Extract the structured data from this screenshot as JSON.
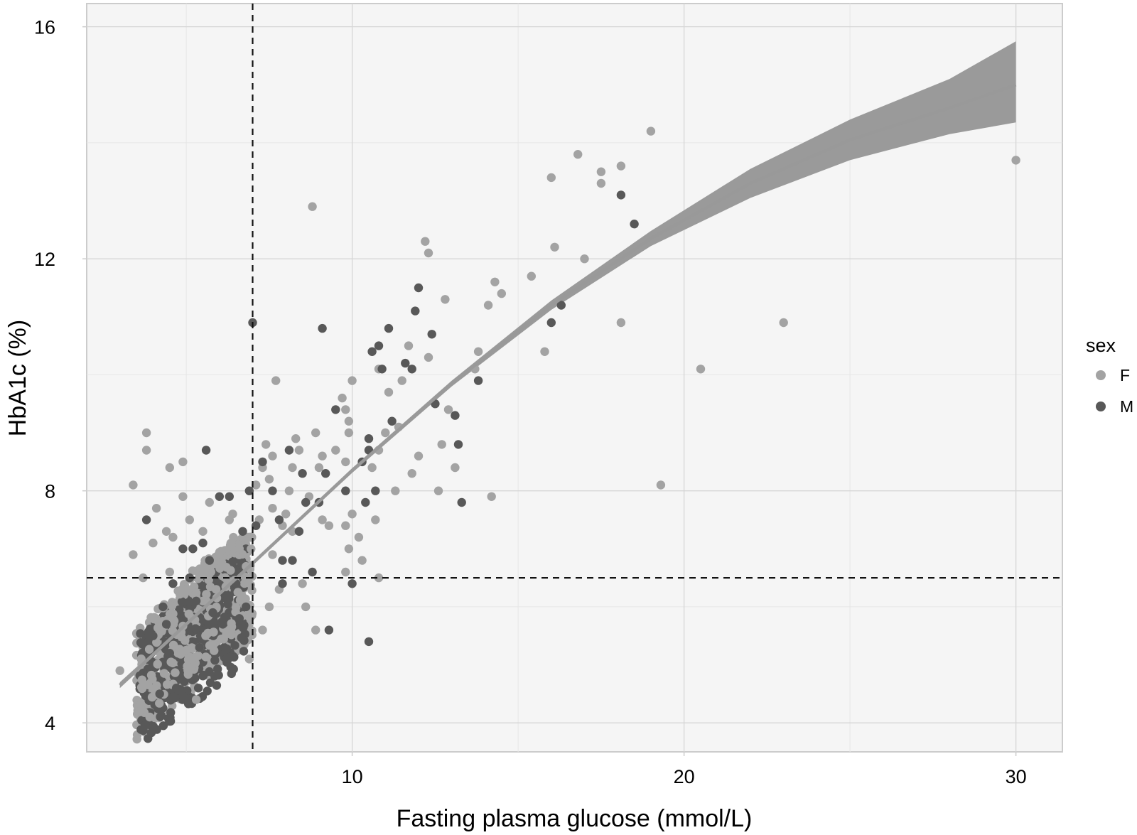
{
  "chart_data": {
    "type": "scatter",
    "title": "",
    "xlabel": "Fasting plasma glucose (mmol/L)",
    "ylabel": "HbA1c (%)",
    "xlim": [
      2.0,
      31.4
    ],
    "ylim": [
      3.5,
      16.4
    ],
    "x_ticks": [
      10,
      20,
      30
    ],
    "x_tick_labels": [
      "10",
      "20",
      "30"
    ],
    "y_ticks": [
      4,
      8,
      12,
      16
    ],
    "y_tick_labels": [
      "4",
      "8",
      "12",
      "16"
    ],
    "grid": true,
    "background": "#f5f5f5",
    "reference_lines": [
      {
        "orientation": "vertical",
        "x": 7.0,
        "style": "dashed"
      },
      {
        "orientation": "horizontal",
        "y": 6.5,
        "style": "dashed"
      }
    ],
    "legend": {
      "title": "sex",
      "placement": "right",
      "entries": [
        {
          "label": "F",
          "color": "#a3a3a3"
        },
        {
          "label": "M",
          "color": "#585858"
        }
      ]
    },
    "series": [
      {
        "name": "F",
        "color": "#a3a3a3",
        "points": [
          [
            3.0,
            4.9
          ],
          [
            3.4,
            6.9
          ],
          [
            3.4,
            8.1
          ],
          [
            3.6,
            4.2
          ],
          [
            3.7,
            6.5
          ],
          [
            3.9,
            4.1
          ],
          [
            3.8,
            8.7
          ],
          [
            3.8,
            9.0
          ],
          [
            4.1,
            7.7
          ],
          [
            4.0,
            7.1
          ],
          [
            4.5,
            8.4
          ],
          [
            4.5,
            6.6
          ],
          [
            4.4,
            7.3
          ],
          [
            4.3,
            6.0
          ],
          [
            4.6,
            7.2
          ],
          [
            4.9,
            7.9
          ],
          [
            4.9,
            8.5
          ],
          [
            5.1,
            7.5
          ],
          [
            5.3,
            4.4
          ],
          [
            5.5,
            7.3
          ],
          [
            5.7,
            7.8
          ],
          [
            5.5,
            6.1
          ],
          [
            5.9,
            6.3
          ],
          [
            6.3,
            7.5
          ],
          [
            6.6,
            7.0
          ],
          [
            6.4,
            7.6
          ],
          [
            6.9,
            7.2
          ],
          [
            6.9,
            6.5
          ],
          [
            6.9,
            5.1
          ],
          [
            7.1,
            8.1
          ],
          [
            7.2,
            7.5
          ],
          [
            7.3,
            8.4
          ],
          [
            7.4,
            8.8
          ],
          [
            7.6,
            8.6
          ],
          [
            7.7,
            9.9
          ],
          [
            7.5,
            8.2
          ],
          [
            7.6,
            7.7
          ],
          [
            7.9,
            7.4
          ],
          [
            7.8,
            6.3
          ],
          [
            7.6,
            6.9
          ],
          [
            7.3,
            5.6
          ],
          [
            7.5,
            6.0
          ],
          [
            8.0,
            7.6
          ],
          [
            8.1,
            8.0
          ],
          [
            8.2,
            7.3
          ],
          [
            8.2,
            8.4
          ],
          [
            8.3,
            8.9
          ],
          [
            8.4,
            8.7
          ],
          [
            8.5,
            6.4
          ],
          [
            8.6,
            6.0
          ],
          [
            8.7,
            7.9
          ],
          [
            8.9,
            5.6
          ],
          [
            8.9,
            9.0
          ],
          [
            9.0,
            8.4
          ],
          [
            9.1,
            7.5
          ],
          [
            9.3,
            7.4
          ],
          [
            9.1,
            8.6
          ],
          [
            9.5,
            8.7
          ],
          [
            9.7,
            9.6
          ],
          [
            9.8,
            8.5
          ],
          [
            9.8,
            9.4
          ],
          [
            9.9,
            9.2
          ],
          [
            9.9,
            9.0
          ],
          [
            10.0,
            9.9
          ],
          [
            9.8,
            7.4
          ],
          [
            9.8,
            6.6
          ],
          [
            9.9,
            7.0
          ],
          [
            10.3,
            6.8
          ],
          [
            10.2,
            7.2
          ],
          [
            10.0,
            7.6
          ],
          [
            10.6,
            8.4
          ],
          [
            10.8,
            8.7
          ],
          [
            11.0,
            9.0
          ],
          [
            11.1,
            9.7
          ],
          [
            11.3,
            8.0
          ],
          [
            11.4,
            9.1
          ],
          [
            11.5,
            9.9
          ],
          [
            11.7,
            10.5
          ],
          [
            11.8,
            8.3
          ],
          [
            12.0,
            8.6
          ],
          [
            12.3,
            10.3
          ],
          [
            12.2,
            12.3
          ],
          [
            12.3,
            12.1
          ],
          [
            12.7,
            8.8
          ],
          [
            12.8,
            11.3
          ],
          [
            12.9,
            9.4
          ],
          [
            12.6,
            8.0
          ],
          [
            13.1,
            8.4
          ],
          [
            13.7,
            10.1
          ],
          [
            13.8,
            10.4
          ],
          [
            14.1,
            11.2
          ],
          [
            14.3,
            11.6
          ],
          [
            14.5,
            11.4
          ],
          [
            14.2,
            7.9
          ],
          [
            15.4,
            11.7
          ],
          [
            15.8,
            10.4
          ],
          [
            16.0,
            13.4
          ],
          [
            16.1,
            12.2
          ],
          [
            16.8,
            13.8
          ],
          [
            17.0,
            12.0
          ],
          [
            17.5,
            13.3
          ],
          [
            17.5,
            13.5
          ],
          [
            18.1,
            13.6
          ],
          [
            18.1,
            10.9
          ],
          [
            19.0,
            14.2
          ],
          [
            19.3,
            8.1
          ],
          [
            20.5,
            10.1
          ],
          [
            23.0,
            10.9
          ],
          [
            30.0,
            13.7
          ],
          [
            8.8,
            12.9
          ],
          [
            10.8,
            10.1
          ],
          [
            10.7,
            7.5
          ],
          [
            10.8,
            6.5
          ]
        ]
      },
      {
        "name": "M",
        "color": "#585858",
        "points": [
          [
            3.8,
            7.5
          ],
          [
            4.0,
            5.5
          ],
          [
            4.2,
            4.5
          ],
          [
            4.5,
            5.2
          ],
          [
            4.6,
            6.4
          ],
          [
            4.9,
            7.0
          ],
          [
            5.2,
            7.0
          ],
          [
            5.4,
            5.3
          ],
          [
            5.6,
            8.7
          ],
          [
            5.7,
            6.8
          ],
          [
            5.8,
            5.9
          ],
          [
            6.0,
            7.9
          ],
          [
            6.1,
            5.7
          ],
          [
            6.3,
            7.9
          ],
          [
            6.5,
            6.4
          ],
          [
            6.6,
            5.8
          ],
          [
            6.8,
            6.0
          ],
          [
            6.9,
            8.0
          ],
          [
            7.0,
            10.9
          ],
          [
            7.1,
            7.4
          ],
          [
            7.3,
            8.5
          ],
          [
            7.6,
            8.0
          ],
          [
            7.8,
            7.5
          ],
          [
            7.9,
            6.8
          ],
          [
            7.9,
            6.4
          ],
          [
            8.1,
            8.7
          ],
          [
            8.2,
            6.8
          ],
          [
            8.4,
            7.3
          ],
          [
            8.5,
            8.3
          ],
          [
            8.6,
            7.8
          ],
          [
            8.8,
            6.6
          ],
          [
            9.0,
            7.8
          ],
          [
            9.1,
            10.8
          ],
          [
            9.2,
            8.3
          ],
          [
            9.3,
            5.6
          ],
          [
            9.5,
            9.4
          ],
          [
            9.8,
            8.0
          ],
          [
            10.0,
            6.4
          ],
          [
            10.3,
            8.5
          ],
          [
            10.5,
            8.7
          ],
          [
            10.5,
            8.9
          ],
          [
            10.6,
            10.4
          ],
          [
            10.7,
            8.0
          ],
          [
            10.8,
            10.5
          ],
          [
            10.9,
            10.1
          ],
          [
            11.1,
            10.8
          ],
          [
            11.2,
            9.2
          ],
          [
            11.6,
            10.2
          ],
          [
            11.8,
            10.1
          ],
          [
            11.9,
            11.1
          ],
          [
            12.0,
            11.5
          ],
          [
            12.4,
            10.7
          ],
          [
            12.5,
            9.5
          ],
          [
            13.1,
            9.3
          ],
          [
            13.2,
            8.8
          ],
          [
            13.3,
            7.8
          ],
          [
            13.8,
            9.9
          ],
          [
            10.5,
            5.4
          ],
          [
            10.4,
            7.8
          ],
          [
            16.0,
            10.9
          ],
          [
            16.3,
            11.2
          ],
          [
            18.1,
            13.1
          ],
          [
            18.5,
            12.6
          ],
          [
            4.3,
            6.0
          ],
          [
            4.7,
            4.6
          ],
          [
            5.1,
            6.5
          ],
          [
            5.3,
            6.1
          ],
          [
            6.2,
            5.1
          ],
          [
            6.7,
            7.3
          ],
          [
            5.5,
            7.1
          ],
          [
            4.4,
            5.7
          ]
        ]
      }
    ],
    "fit": {
      "name": "fit",
      "color": "#999999",
      "band_color": "#9a9a9a",
      "x": [
        3.0,
        5.0,
        7.0,
        10.0,
        13.0,
        16.0,
        19.0,
        22.0,
        25.0,
        28.0,
        30.0
      ],
      "y": [
        4.65,
        5.7,
        6.75,
        8.35,
        9.85,
        11.2,
        12.35,
        13.3,
        14.05,
        14.6,
        15.0
      ],
      "lower": [
        4.6,
        5.66,
        6.72,
        8.31,
        9.8,
        11.12,
        12.22,
        13.05,
        13.7,
        14.15,
        14.35
      ],
      "upper": [
        4.7,
        5.74,
        6.78,
        8.39,
        9.9,
        11.28,
        12.48,
        13.55,
        14.4,
        15.1,
        15.75
      ]
    }
  }
}
